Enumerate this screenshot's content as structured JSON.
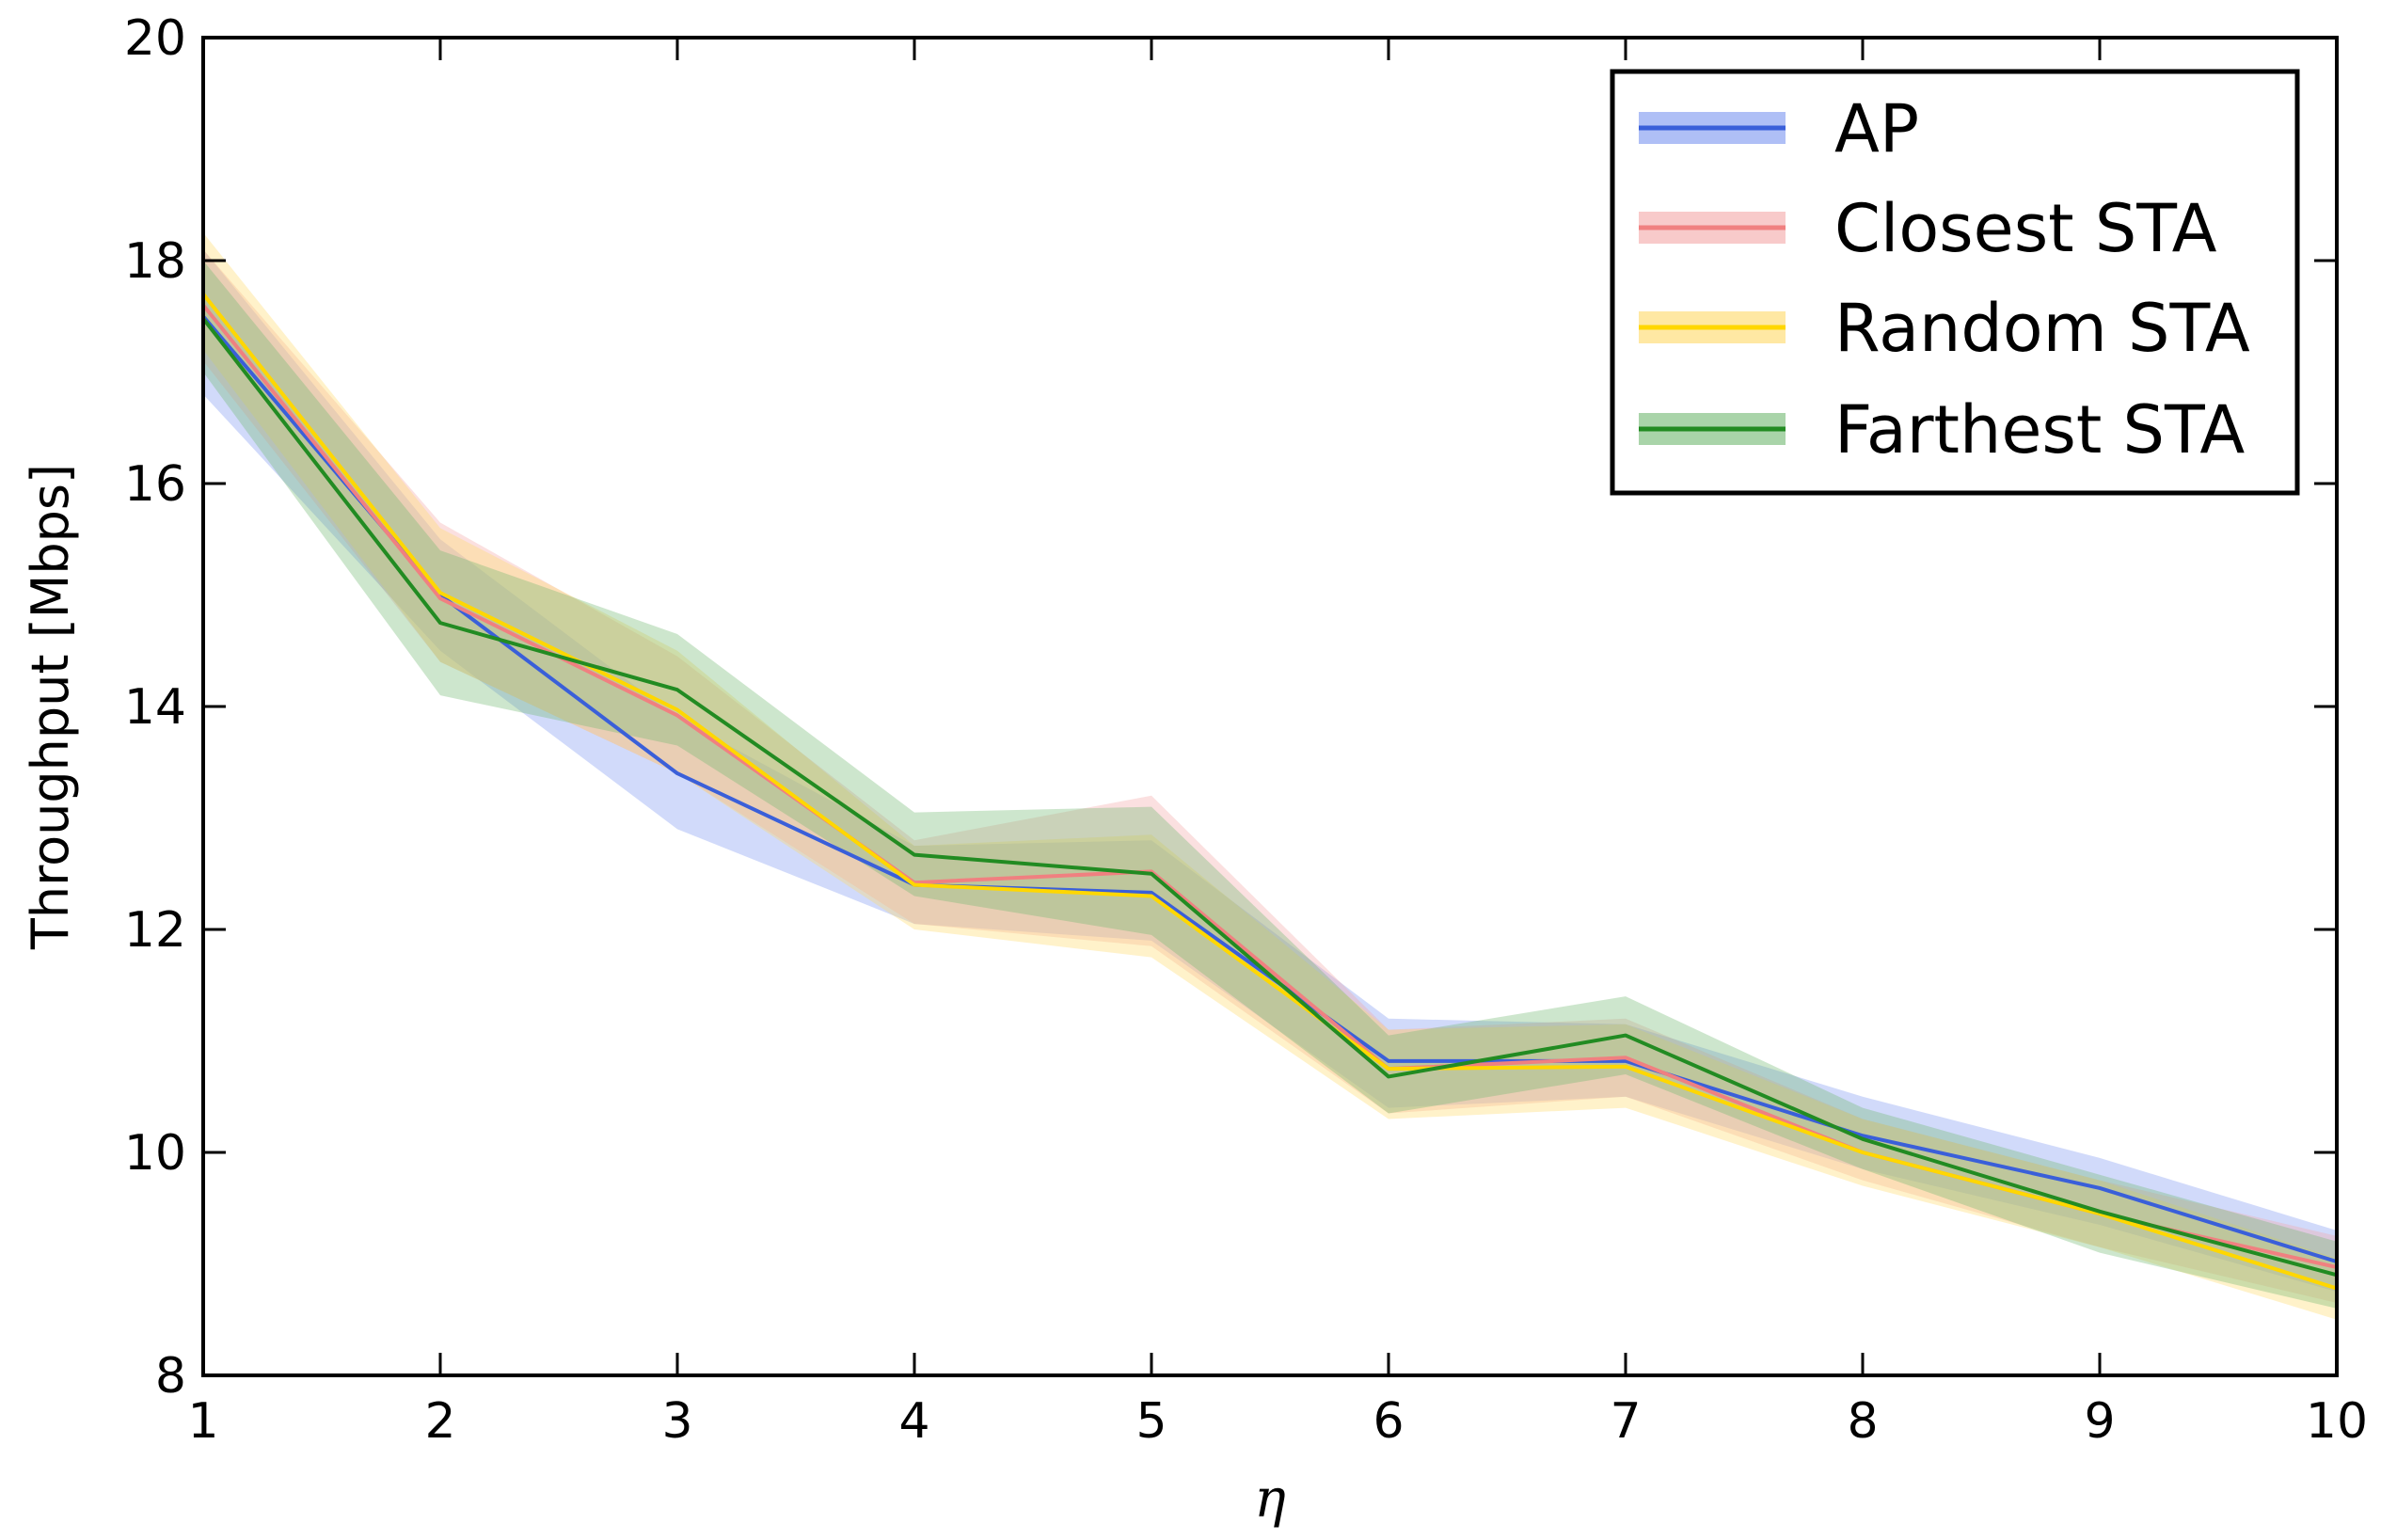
{
  "chart_data": {
    "type": "line",
    "title": "",
    "xlabel": "η",
    "ylabel": "Throughput [Mbps]",
    "xlim": [
      1,
      10
    ],
    "ylim": [
      8,
      20
    ],
    "xticks": [
      1,
      2,
      3,
      4,
      5,
      6,
      7,
      8,
      9,
      10
    ],
    "yticks": [
      8,
      10,
      12,
      14,
      16,
      18,
      20
    ],
    "grid": false,
    "legend_position": "top-right",
    "x": [
      1,
      2,
      3,
      4,
      5,
      6,
      7,
      8,
      9,
      10
    ],
    "series": [
      {
        "name": "AP",
        "color": "#3a5fd9",
        "band_color": "#7a94f0",
        "values": [
          17.5,
          15.0,
          13.4,
          12.4,
          12.33,
          10.82,
          10.82,
          10.15,
          9.68,
          9.02
        ],
        "lower": [
          16.8,
          14.5,
          12.9,
          12.05,
          11.9,
          10.4,
          10.5,
          9.85,
          9.35,
          8.75
        ],
        "upper": [
          18.1,
          15.5,
          13.9,
          12.75,
          12.8,
          11.2,
          11.15,
          10.5,
          9.95,
          9.3
        ]
      },
      {
        "name": "Closest STA",
        "color": "#f08080",
        "band_color": "#f4a6a6",
        "values": [
          17.6,
          14.97,
          13.92,
          12.42,
          12.52,
          10.75,
          10.85,
          10.0,
          9.45,
          8.97
        ],
        "lower": [
          17.1,
          14.4,
          13.4,
          12.05,
          11.85,
          10.35,
          10.5,
          9.75,
          9.15,
          8.65
        ],
        "upper": [
          18.1,
          15.65,
          14.45,
          12.8,
          13.2,
          11.1,
          11.2,
          10.3,
          9.75,
          9.25
        ]
      },
      {
        "name": "Random STA",
        "color": "#ffd700",
        "band_color": "#ffd966",
        "values": [
          17.7,
          15.02,
          13.97,
          12.4,
          12.3,
          10.75,
          10.77,
          10.0,
          9.45,
          8.78
        ],
        "lower": [
          17.2,
          14.4,
          13.4,
          12.0,
          11.75,
          10.3,
          10.4,
          9.7,
          9.15,
          8.5
        ],
        "upper": [
          18.25,
          15.6,
          14.5,
          12.75,
          12.85,
          11.1,
          11.15,
          10.3,
          9.75,
          9.05
        ]
      },
      {
        "name": "Farthest STA",
        "color": "#228b22",
        "band_color": "#6fb86f",
        "values": [
          17.48,
          14.75,
          14.15,
          12.67,
          12.5,
          10.68,
          11.05,
          10.12,
          9.47,
          8.9
        ],
        "lower": [
          17.0,
          14.1,
          13.65,
          12.3,
          11.95,
          10.35,
          10.7,
          9.85,
          9.1,
          8.6
        ],
        "upper": [
          18.0,
          15.4,
          14.65,
          13.05,
          13.1,
          11.05,
          11.4,
          10.4,
          9.8,
          9.2
        ]
      }
    ]
  }
}
